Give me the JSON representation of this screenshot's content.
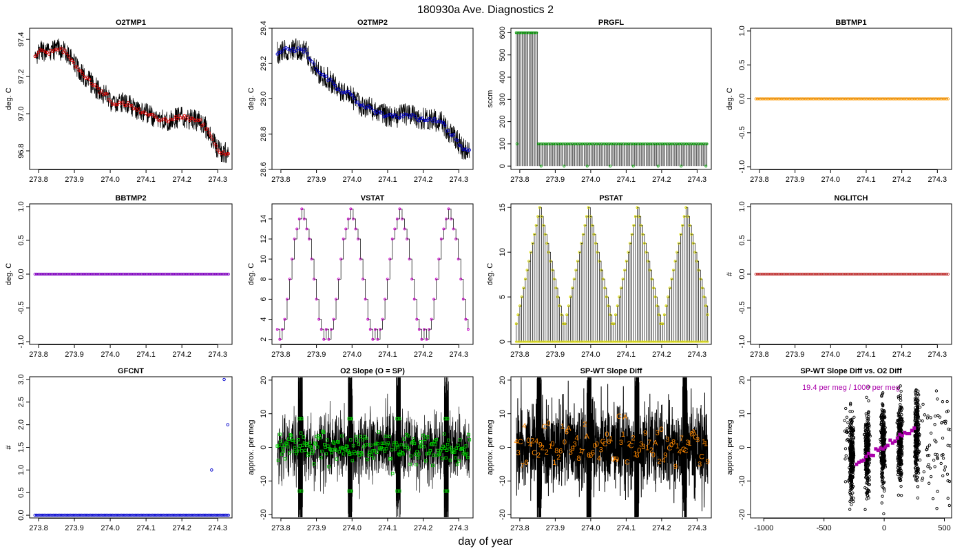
{
  "figure": {
    "title": "180930a   Ave. Diagnostics 2",
    "xlabel": "day of year"
  },
  "chart_data": [
    {
      "id": "o2tmp1",
      "type": "line",
      "title": "O2TMP1",
      "ylabel": "deg. C",
      "xlim": [
        273.775,
        274.34
      ],
      "ylim": [
        96.7,
        97.46
      ],
      "xticks": [
        273.8,
        273.9,
        274.0,
        274.1,
        274.2,
        274.3
      ],
      "xtick_labels": [
        "273.8",
        "273.9",
        "274.0",
        "274.1",
        "274.2",
        "274.3"
      ],
      "yticks": [
        96.8,
        97.0,
        97.2,
        97.4
      ],
      "ytick_labels": [
        "96.8",
        "97.0",
        "97.2",
        "97.4"
      ],
      "line_color": "#000000",
      "point_color": "#dd0000",
      "x": [
        273.79,
        273.81,
        273.83,
        273.85,
        273.87,
        273.89,
        273.91,
        273.93,
        273.95,
        273.97,
        273.99,
        274.01,
        274.03,
        274.05,
        274.07,
        274.09,
        274.11,
        274.13,
        274.15,
        274.17,
        274.19,
        274.21,
        274.23,
        274.25,
        274.27,
        274.29,
        274.31,
        274.33
      ],
      "values": [
        97.32,
        97.34,
        97.33,
        97.35,
        97.34,
        97.3,
        97.24,
        97.2,
        97.16,
        97.12,
        97.1,
        97.05,
        97.06,
        97.05,
        97.02,
        97.01,
        96.99,
        96.98,
        96.96,
        96.97,
        96.98,
        96.98,
        96.97,
        96.96,
        96.92,
        96.84,
        96.79,
        96.79
      ],
      "noise": 0.09
    },
    {
      "id": "o2tmp2",
      "type": "line",
      "title": "O2TMP2",
      "ylabel": "deg. C",
      "xlim": [
        273.775,
        274.34
      ],
      "ylim": [
        28.6,
        29.4
      ],
      "xticks": [
        273.8,
        273.9,
        274.0,
        274.1,
        274.2,
        274.3
      ],
      "xtick_labels": [
        "273.8",
        "273.9",
        "274.0",
        "274.1",
        "274.2",
        "274.3"
      ],
      "yticks": [
        28.6,
        28.8,
        29.0,
        29.2,
        29.4
      ],
      "ytick_labels": [
        "28.6",
        "28.8",
        "29.0",
        "29.2",
        "29.4"
      ],
      "line_color": "#000000",
      "point_color": "#0000cc",
      "x": [
        273.79,
        273.81,
        273.83,
        273.85,
        273.87,
        273.89,
        273.91,
        273.93,
        273.95,
        273.97,
        273.99,
        274.01,
        274.03,
        274.05,
        274.07,
        274.09,
        274.11,
        274.13,
        274.15,
        274.17,
        274.19,
        274.21,
        274.23,
        274.25,
        274.27,
        274.29,
        274.31,
        274.33
      ],
      "values": [
        29.26,
        29.28,
        29.28,
        29.28,
        29.27,
        29.2,
        29.14,
        29.12,
        29.08,
        29.04,
        29.05,
        28.98,
        28.96,
        28.95,
        28.92,
        28.91,
        28.9,
        28.9,
        28.91,
        28.9,
        28.88,
        28.89,
        28.88,
        28.87,
        28.82,
        28.78,
        28.72,
        28.71
      ],
      "noise": 0.1
    },
    {
      "id": "prgfl",
      "type": "line",
      "title": "PRGFL",
      "ylabel": "sccm",
      "xlim": [
        273.775,
        274.34
      ],
      "ylim": [
        -15,
        620
      ],
      "xticks": [
        273.8,
        273.9,
        274.0,
        274.1,
        274.2,
        274.3
      ],
      "xtick_labels": [
        "273.8",
        "273.9",
        "274.0",
        "274.1",
        "274.2",
        "274.3"
      ],
      "yticks": [
        0,
        100,
        200,
        300,
        400,
        500,
        600
      ],
      "ytick_labels": [
        "0",
        "100",
        "200",
        "300",
        "400",
        "500",
        "600"
      ],
      "line_color": "#000000",
      "point_color": "#00a000",
      "high_phase_end": 273.85,
      "high_value": 600,
      "low_value": 100,
      "dip_days": [
        273.86,
        273.925,
        273.99,
        274.055,
        274.12,
        274.19,
        274.255,
        274.325
      ]
    },
    {
      "id": "bbtmp1",
      "type": "line",
      "title": "BBTMP1",
      "ylabel": "deg. C",
      "xlim": [
        273.775,
        274.34
      ],
      "ylim": [
        -1.04,
        1.04
      ],
      "xticks": [
        273.8,
        273.9,
        274.0,
        274.1,
        274.2,
        274.3
      ],
      "xtick_labels": [
        "273.8",
        "273.9",
        "274.0",
        "274.1",
        "274.2",
        "274.3"
      ],
      "yticks": [
        -1.0,
        -0.5,
        0.0,
        0.5,
        1.0
      ],
      "ytick_labels": [
        "-1.0",
        "-0.5",
        "0.0",
        "0.5",
        "1.0"
      ],
      "line_color": "#000000",
      "point_color": "#ff9900",
      "constant_value": 0.0
    },
    {
      "id": "bbtmp2",
      "type": "line",
      "title": "BBTMP2",
      "ylabel": "deg. C",
      "xlim": [
        273.775,
        274.34
      ],
      "ylim": [
        -1.04,
        1.04
      ],
      "xticks": [
        273.8,
        273.9,
        274.0,
        274.1,
        274.2,
        274.3
      ],
      "xtick_labels": [
        "273.8",
        "273.9",
        "274.0",
        "274.1",
        "274.2",
        "274.3"
      ],
      "yticks": [
        -1.0,
        -0.5,
        0.0,
        0.5,
        1.0
      ],
      "ytick_labels": [
        "-1.0",
        "-0.5",
        "0.0",
        "0.5",
        "1.0"
      ],
      "line_color": "#000000",
      "point_color": "#8800cc",
      "constant_value": 0.0
    },
    {
      "id": "vstat",
      "type": "line",
      "title": "VSTAT",
      "ylabel": "deg. C",
      "xlim": [
        273.775,
        274.34
      ],
      "ylim": [
        1.5,
        15.5
      ],
      "xticks": [
        273.8,
        273.9,
        274.0,
        274.1,
        274.2,
        274.3
      ],
      "xtick_labels": [
        "273.8",
        "273.9",
        "274.0",
        "274.1",
        "274.2",
        "274.3"
      ],
      "yticks": [
        2,
        4,
        6,
        8,
        10,
        12,
        14
      ],
      "ytick_labels": [
        "2",
        "4",
        "6",
        "8",
        "10",
        "12",
        "14"
      ],
      "line_color": "#000000",
      "point_color": "#cc00cc",
      "sequence": [
        3,
        2,
        3,
        4,
        6,
        8,
        10,
        12,
        13,
        14,
        15,
        14,
        13,
        12,
        10,
        8,
        6,
        4,
        3,
        2
      ],
      "start": 273.79,
      "period": 0.1375,
      "cycles": 4
    },
    {
      "id": "pstat",
      "type": "line",
      "title": "PSTAT",
      "ylabel": "deg. C",
      "xlim": [
        273.775,
        274.34
      ],
      "ylim": [
        -0.3,
        15.4
      ],
      "xticks": [
        273.8,
        273.9,
        274.0,
        274.1,
        274.2,
        274.3
      ],
      "xtick_labels": [
        "273.8",
        "273.9",
        "274.0",
        "274.1",
        "274.2",
        "274.3"
      ],
      "yticks": [
        0,
        5,
        10,
        15
      ],
      "ytick_labels": [
        "0",
        "5",
        "10",
        "15"
      ],
      "line_color": "#000000",
      "point_color": "#dddd00",
      "sequence": [
        2,
        3,
        4,
        5,
        6,
        7,
        8,
        9,
        10,
        11,
        12,
        13,
        14,
        15,
        14,
        13,
        12,
        11,
        10,
        9,
        8,
        7,
        6,
        5,
        4,
        3,
        2
      ],
      "start": 273.79,
      "period": 0.1375,
      "cycles": 4
    },
    {
      "id": "nglitch",
      "type": "line",
      "title": "NGLITCH",
      "ylabel": "#",
      "xlim": [
        273.775,
        274.34
      ],
      "ylim": [
        -1.04,
        1.04
      ],
      "xticks": [
        273.8,
        273.9,
        274.0,
        274.1,
        274.2,
        274.3
      ],
      "xtick_labels": [
        "273.8",
        "273.9",
        "274.0",
        "274.1",
        "274.2",
        "274.3"
      ],
      "yticks": [
        -1.0,
        -0.5,
        0.0,
        0.5,
        1.0
      ],
      "ytick_labels": [
        "-1.0",
        "-0.5",
        "0.0",
        "0.5",
        "1.0"
      ],
      "line_color": "#000000",
      "point_color": "#cc3333",
      "constant_value": 0.0
    },
    {
      "id": "gfcnt",
      "type": "scatter",
      "title": "GFCNT",
      "ylabel": "#",
      "xlim": [
        273.775,
        274.34
      ],
      "ylim": [
        -0.06,
        3.06
      ],
      "xticks": [
        273.8,
        273.9,
        274.0,
        274.1,
        274.2,
        274.3
      ],
      "xtick_labels": [
        "273.8",
        "273.9",
        "274.0",
        "274.1",
        "274.2",
        "274.3"
      ],
      "yticks": [
        0.0,
        0.5,
        1.0,
        1.5,
        2.0,
        2.5,
        3.0
      ],
      "ytick_labels": [
        "0.0",
        "0.5",
        "1.0",
        "1.5",
        "2.0",
        "2.5",
        "3.0"
      ],
      "point_color": "#0000cc",
      "baseline": 0.0,
      "special_points": [
        {
          "x": 274.283,
          "y": 1.0
        },
        {
          "x": 274.318,
          "y": 3.0
        },
        {
          "x": 274.328,
          "y": 2.0
        }
      ]
    },
    {
      "id": "o2slope",
      "type": "line",
      "title": "O2 Slope (O = SP)",
      "ylabel": "approx. per meg",
      "xlim": [
        273.775,
        274.34
      ],
      "ylim": [
        -21,
        21
      ],
      "xticks": [
        273.8,
        273.9,
        274.0,
        274.1,
        274.2,
        274.3
      ],
      "xtick_labels": [
        "273.8",
        "273.9",
        "274.0",
        "274.1",
        "274.2",
        "274.3"
      ],
      "yticks": [
        -20,
        -10,
        0,
        10,
        20
      ],
      "ytick_labels": [
        "-20",
        "-10",
        "0",
        "10",
        "20"
      ],
      "line_color": "#000000",
      "point_color": "#00cc00",
      "spike_days": [
        273.855,
        273.995,
        274.13,
        274.265
      ]
    },
    {
      "id": "spwt",
      "type": "line",
      "title": "SP-WT Slope Diff",
      "ylabel": "approx. per meg",
      "xlim": [
        273.775,
        274.34
      ],
      "ylim": [
        -21,
        21
      ],
      "xticks": [
        273.8,
        273.9,
        274.0,
        274.1,
        274.2,
        274.3
      ],
      "xtick_labels": [
        "273.8",
        "273.9",
        "274.0",
        "274.1",
        "274.2",
        "274.3"
      ],
      "yticks": [
        -20,
        -10,
        0,
        10,
        20
      ],
      "ytick_labels": [
        "-20",
        "-10",
        "0",
        "10",
        "20"
      ],
      "line_color": "#000000",
      "label_color": "#ff8800",
      "spike_days": [
        273.855,
        273.995,
        274.13,
        274.265
      ],
      "label_chars": [
        "2",
        "4",
        "3",
        "7",
        "C",
        "6",
        "0",
        "9",
        "8",
        "A",
        "1"
      ]
    },
    {
      "id": "spwt_vs_o2",
      "type": "scatter",
      "title": "SP-WT Slope Diff vs. O2 Diff",
      "ylabel": "approx. per meg",
      "xlim": [
        -1110,
        560
      ],
      "ylim": [
        -21,
        21
      ],
      "xticks": [
        -1000,
        -500,
        0,
        500
      ],
      "xtick_labels": [
        "-1000",
        "-500",
        "0",
        "500"
      ],
      "yticks": [
        -20,
        -10,
        0,
        10,
        20
      ],
      "ytick_labels": [
        "-20",
        "-10",
        "0",
        "10",
        "20"
      ],
      "point_color": "#000000",
      "highlight_color": "#aa00aa",
      "annotation": "19.4 per meg / 1000 per meg",
      "clusters": [
        -270,
        -140,
        -10,
        130,
        270
      ],
      "slope": 0.0194
    }
  ]
}
